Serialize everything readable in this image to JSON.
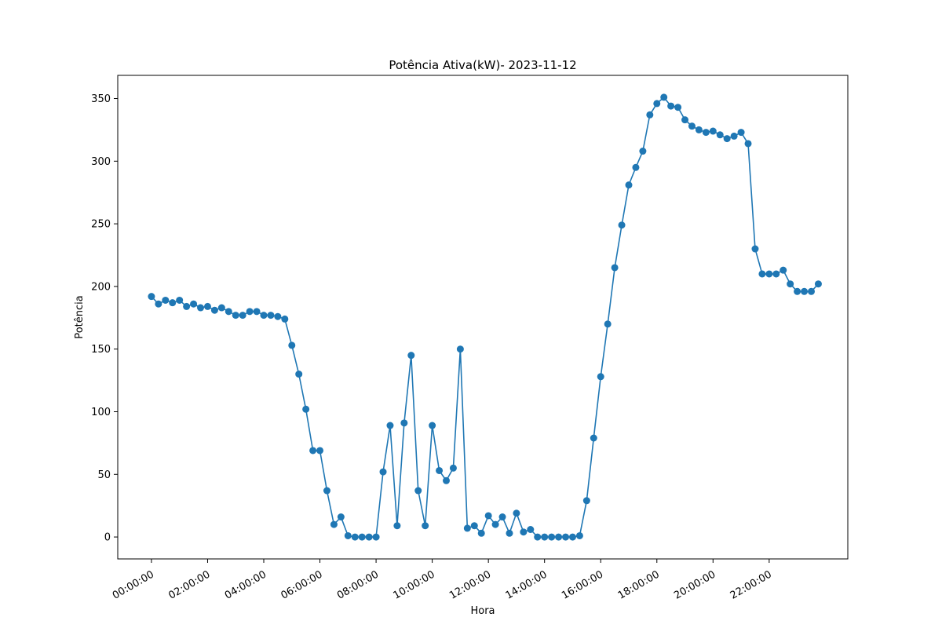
{
  "chart_data": {
    "type": "line",
    "title": "Potência Ativa(kW)- 2023-11-12",
    "xlabel": "Hora",
    "ylabel": "Potência",
    "x_unit": "hours",
    "x_step_hours": 0.25,
    "xlim": [
      -1.2,
      24.8
    ],
    "ylim": [
      -17.5,
      368.5
    ],
    "grid": false,
    "legend": "none",
    "colors": {
      "series": "#1f77b4",
      "axis": "#000000",
      "background": "#ffffff"
    },
    "x_ticks": [
      {
        "value": 0,
        "label": "00:00:00"
      },
      {
        "value": 2,
        "label": "02:00:00"
      },
      {
        "value": 4,
        "label": "04:00:00"
      },
      {
        "value": 6,
        "label": "06:00:00"
      },
      {
        "value": 8,
        "label": "08:00:00"
      },
      {
        "value": 10,
        "label": "10:00:00"
      },
      {
        "value": 12,
        "label": "12:00:00"
      },
      {
        "value": 14,
        "label": "14:00:00"
      },
      {
        "value": 16,
        "label": "16:00:00"
      },
      {
        "value": 18,
        "label": "18:00:00"
      },
      {
        "value": 20,
        "label": "20:00:00"
      },
      {
        "value": 22,
        "label": "22:00:00"
      }
    ],
    "y_ticks": [
      {
        "value": 0,
        "label": "0"
      },
      {
        "value": 50,
        "label": "50"
      },
      {
        "value": 100,
        "label": "100"
      },
      {
        "value": 150,
        "label": "150"
      },
      {
        "value": 200,
        "label": "200"
      },
      {
        "value": 250,
        "label": "250"
      },
      {
        "value": 300,
        "label": "300"
      },
      {
        "value": 350,
        "label": "350"
      }
    ],
    "series": [
      {
        "values": [
          192,
          186,
          189,
          187,
          189,
          184,
          186,
          183,
          184,
          181,
          183,
          180,
          177,
          177,
          180,
          180,
          177,
          177,
          176,
          174,
          153,
          130,
          102,
          69,
          69,
          37,
          10,
          16,
          1,
          0,
          0,
          0,
          0,
          52,
          89,
          9,
          91,
          145,
          37,
          9,
          89,
          53,
          45,
          55,
          150,
          7,
          9,
          3,
          17,
          10,
          16,
          3,
          19,
          4,
          6,
          0,
          0,
          0,
          0,
          0,
          0,
          1,
          29,
          79,
          128,
          170,
          215,
          249,
          281,
          295,
          308,
          337,
          346,
          351,
          344,
          343,
          333,
          328,
          325,
          323,
          324,
          321,
          318,
          320,
          323,
          314,
          230,
          210,
          210,
          210,
          213,
          202,
          196,
          196,
          196,
          202
        ]
      }
    ]
  }
}
